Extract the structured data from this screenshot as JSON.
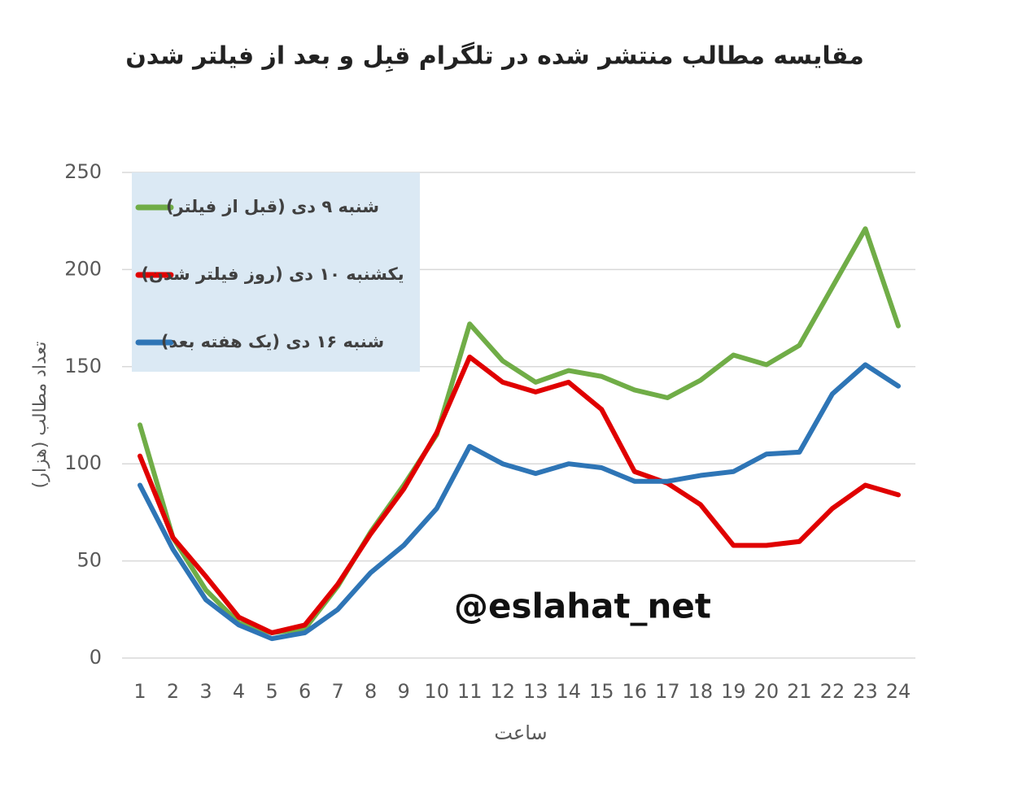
{
  "chart_data": {
    "type": "line",
    "title": "مقایسه مطالب منتشر شده در تلگرام  قبِل و بعد از فیلتر شدن",
    "x_label": "ساعت",
    "y_label": "تعداد مطالب (هزار)",
    "annotation": "@eslahat_net",
    "categories": [
      "1",
      "2",
      "3",
      "4",
      "5",
      "6",
      "7",
      "8",
      "9",
      "10",
      "11",
      "12",
      "13",
      "14",
      "15",
      "16",
      "17",
      "18",
      "19",
      "20",
      "21",
      "22",
      "23",
      "24"
    ],
    "series": [
      {
        "name": "شنبه ۹ دی (قبل از فیلتر)",
        "color": "#70ad47",
        "values": [
          120,
          62,
          35,
          18,
          13,
          15,
          37,
          65,
          89,
          115,
          172,
          153,
          142,
          148,
          145,
          138,
          134,
          143,
          156,
          151,
          161,
          191,
          221,
          171
        ]
      },
      {
        "name": "یکشنبه ۱۰ دی (روز فیلتر شدن)",
        "color": "#e00000",
        "values": [
          104,
          62,
          42,
          21,
          13,
          17,
          38,
          64,
          87,
          116,
          155,
          142,
          137,
          142,
          128,
          96,
          90,
          79,
          58,
          58,
          60,
          77,
          89,
          84
        ]
      },
      {
        "name": "شنبه ۱۶ دی (یک هفته بعد)",
        "color": "#2e75b6",
        "values": [
          89,
          56,
          30,
          17,
          10,
          13,
          25,
          44,
          58,
          77,
          109,
          100,
          95,
          100,
          98,
          91,
          91,
          94,
          96,
          105,
          106,
          136,
          151,
          140
        ]
      }
    ],
    "ylim": [
      0,
      250
    ],
    "yticks": [
      0,
      50,
      100,
      150,
      200,
      250
    ],
    "grid": true,
    "legend": "top-left"
  }
}
